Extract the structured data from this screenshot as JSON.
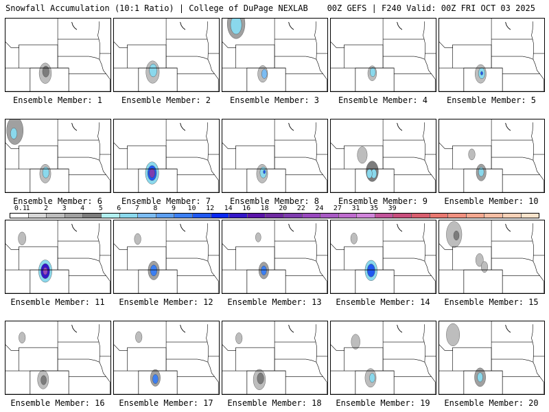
{
  "title_left": "Snowfall Accumulation (10:1 Ratio) | College of DuPage NEXLAB",
  "title_right": "00Z GEFS | F240 Valid: 00Z FRI OCT 03 2025",
  "legend": {
    "labels": [
      "0.1",
      "1",
      "2",
      "3",
      "4",
      "5",
      "6",
      "7",
      "8",
      "9",
      "10",
      "12",
      "14",
      "16",
      "18",
      "20",
      "22",
      "24",
      "27",
      "31",
      "35",
      "39"
    ],
    "colors": [
      "#ffffff",
      "#d8d8d8",
      "#bdbdbd",
      "#a0a0a0",
      "#7c7c7c",
      "#b2f0f0",
      "#8ad8ec",
      "#7cbcf2",
      "#5c9ef0",
      "#3c7ff2",
      "#2058f0",
      "#0a28f0",
      "#3418c8",
      "#5a14a8",
      "#6e2aa0",
      "#7e3cae",
      "#9848be",
      "#a85ac4",
      "#be6cce",
      "#d084da",
      "#c2549a",
      "#c84e7c",
      "#d85e6e",
      "#e87870",
      "#f09080",
      "#f4a890",
      "#f6bea4",
      "#f8d2b8",
      "#fae4cc"
    ]
  },
  "members": [
    {
      "label": "Ensemble Member: 1",
      "blobs": [
        {
          "lon": -106.3,
          "lat": 40.1,
          "r": 1.1,
          "lvl": 2
        },
        {
          "lon": -106.2,
          "lat": 40.4,
          "r": 0.6,
          "lvl": 4
        }
      ]
    },
    {
      "label": "Ensemble Member: 2",
      "blobs": [
        {
          "lon": -106.5,
          "lat": 40.3,
          "r": 1.2,
          "lvl": 2
        },
        {
          "lon": -106.4,
          "lat": 40.6,
          "r": 0.7,
          "lvl": 6
        }
      ]
    },
    {
      "label": "Ensemble Member: 3",
      "blobs": [
        {
          "lon": -111.0,
          "lat": 48.6,
          "r": 1.6,
          "lvl": 3
        },
        {
          "lon": -111.0,
          "lat": 48.4,
          "r": 1.0,
          "lvl": 6
        },
        {
          "lon": -106.2,
          "lat": 40.0,
          "r": 0.9,
          "lvl": 2
        },
        {
          "lon": -105.9,
          "lat": 40.0,
          "r": 0.5,
          "lvl": 7
        }
      ]
    },
    {
      "label": "Ensemble Member: 4",
      "blobs": [
        {
          "lon": -106.0,
          "lat": 40.1,
          "r": 0.8,
          "lvl": 2
        },
        {
          "lon": -105.9,
          "lat": 40.3,
          "r": 0.5,
          "lvl": 6
        }
      ]
    },
    {
      "label": "Ensemble Member: 5",
      "blobs": [
        {
          "lon": -106.0,
          "lat": 40.0,
          "r": 1.0,
          "lvl": 2
        },
        {
          "lon": -105.8,
          "lat": 40.1,
          "r": 0.6,
          "lvl": 6
        },
        {
          "lon": -105.8,
          "lat": 40.1,
          "r": 0.2,
          "lvl": 10
        }
      ]
    },
    {
      "label": "Ensemble Member: 6",
      "blobs": [
        {
          "lon": -111.8,
          "lat": 47.6,
          "r": 1.5,
          "lvl": 3
        },
        {
          "lon": -112.0,
          "lat": 47.1,
          "r": 0.6,
          "lvl": 6
        },
        {
          "lon": -106.3,
          "lat": 40.2,
          "r": 1.0,
          "lvl": 2
        },
        {
          "lon": -106.2,
          "lat": 40.4,
          "r": 0.6,
          "lvl": 6
        }
      ]
    },
    {
      "label": "Ensemble Member: 7",
      "blobs": [
        {
          "lon": -106.6,
          "lat": 40.3,
          "r": 1.2,
          "lvl": 6
        },
        {
          "lon": -106.6,
          "lat": 40.3,
          "r": 0.8,
          "lvl": 10
        },
        {
          "lon": -106.6,
          "lat": 40.3,
          "r": 0.5,
          "lvl": 15
        }
      ]
    },
    {
      "label": "Ensemble Member: 8",
      "blobs": [
        {
          "lon": -106.3,
          "lat": 40.2,
          "r": 1.0,
          "lvl": 2
        },
        {
          "lon": -106.1,
          "lat": 40.4,
          "r": 0.6,
          "lvl": 6
        },
        {
          "lon": -105.9,
          "lat": 40.5,
          "r": 0.2,
          "lvl": 10
        }
      ]
    },
    {
      "label": "Ensemble Member: 9",
      "blobs": [
        {
          "lon": -107.8,
          "lat": 43.4,
          "r": 0.9,
          "lvl": 2
        },
        {
          "lon": -106.0,
          "lat": 40.6,
          "r": 1.1,
          "lvl": 4
        },
        {
          "lon": -105.7,
          "lat": 40.2,
          "r": 0.5,
          "lvl": 6
        },
        {
          "lon": -106.5,
          "lat": 40.2,
          "r": 0.5,
          "lvl": 6
        }
      ]
    },
    {
      "label": "Ensemble Member: 10",
      "blobs": [
        {
          "lon": -107.6,
          "lat": 43.5,
          "r": 0.6,
          "lvl": 2
        },
        {
          "lon": -105.9,
          "lat": 40.4,
          "r": 0.9,
          "lvl": 3
        },
        {
          "lon": -105.9,
          "lat": 40.5,
          "r": 0.5,
          "lvl": 6
        }
      ]
    },
    {
      "label": "Ensemble Member: 11",
      "blobs": [
        {
          "lon": -110.5,
          "lat": 46.4,
          "r": 0.7,
          "lvl": 2
        },
        {
          "lon": -106.3,
          "lat": 40.8,
          "r": 1.2,
          "lvl": 6
        },
        {
          "lon": -106.3,
          "lat": 40.8,
          "r": 0.8,
          "lvl": 12
        },
        {
          "lon": -106.3,
          "lat": 40.8,
          "r": 0.4,
          "lvl": 16
        }
      ]
    },
    {
      "label": "Ensemble Member: 12",
      "blobs": [
        {
          "lon": -109.2,
          "lat": 46.3,
          "r": 0.6,
          "lvl": 2
        },
        {
          "lon": -106.3,
          "lat": 40.9,
          "r": 1.0,
          "lvl": 3
        },
        {
          "lon": -106.3,
          "lat": 40.9,
          "r": 0.6,
          "lvl": 9
        }
      ]
    },
    {
      "label": "Ensemble Member: 13",
      "blobs": [
        {
          "lon": -107.0,
          "lat": 46.6,
          "r": 0.5,
          "lvl": 2
        },
        {
          "lon": -106.0,
          "lat": 40.9,
          "r": 0.9,
          "lvl": 3
        },
        {
          "lon": -106.0,
          "lat": 40.9,
          "r": 0.5,
          "lvl": 9
        }
      ]
    },
    {
      "label": "Ensemble Member: 14",
      "blobs": [
        {
          "lon": -109.3,
          "lat": 46.4,
          "r": 0.6,
          "lvl": 2
        },
        {
          "lon": -106.2,
          "lat": 40.9,
          "r": 1.1,
          "lvl": 6
        },
        {
          "lon": -106.2,
          "lat": 40.9,
          "r": 0.7,
          "lvl": 10
        }
      ]
    },
    {
      "label": "Ensemble Member: 15",
      "blobs": [
        {
          "lon": -110.8,
          "lat": 47.1,
          "r": 1.4,
          "lvl": 2
        },
        {
          "lon": -110.4,
          "lat": 46.9,
          "r": 0.5,
          "lvl": 4
        },
        {
          "lon": -106.2,
          "lat": 42.7,
          "r": 0.7,
          "lvl": 2
        },
        {
          "lon": -105.3,
          "lat": 41.5,
          "r": 0.6,
          "lvl": 2
        }
      ]
    },
    {
      "label": "Ensemble Member: 16",
      "blobs": [
        {
          "lon": -110.5,
          "lat": 46.7,
          "r": 0.6,
          "lvl": 2
        },
        {
          "lon": -106.7,
          "lat": 39.5,
          "r": 1.0,
          "lvl": 2
        },
        {
          "lon": -106.6,
          "lat": 39.4,
          "r": 0.5,
          "lvl": 4
        }
      ]
    },
    {
      "label": "Ensemble Member: 17",
      "blobs": [
        {
          "lon": -109.0,
          "lat": 46.8,
          "r": 0.6,
          "lvl": 2
        },
        {
          "lon": -106.0,
          "lat": 39.8,
          "r": 0.9,
          "lvl": 3
        },
        {
          "lon": -106.0,
          "lat": 39.6,
          "r": 0.5,
          "lvl": 9
        }
      ]
    },
    {
      "label": "Ensemble Member: 18",
      "blobs": [
        {
          "lon": -110.5,
          "lat": 46.6,
          "r": 0.6,
          "lvl": 2
        },
        {
          "lon": -106.8,
          "lat": 39.5,
          "r": 1.1,
          "lvl": 2
        },
        {
          "lon": -106.6,
          "lat": 39.7,
          "r": 0.6,
          "lvl": 4
        }
      ]
    },
    {
      "label": "Ensemble Member: 19",
      "blobs": [
        {
          "lon": -109.0,
          "lat": 46.0,
          "r": 0.8,
          "lvl": 2
        },
        {
          "lon": -106.3,
          "lat": 39.8,
          "r": 1.0,
          "lvl": 2
        },
        {
          "lon": -106.0,
          "lat": 39.8,
          "r": 0.5,
          "lvl": 6
        }
      ]
    },
    {
      "label": "Ensemble Member: 20",
      "blobs": [
        {
          "lon": -111.0,
          "lat": 47.2,
          "r": 1.2,
          "lvl": 2
        },
        {
          "lon": -106.1,
          "lat": 39.9,
          "r": 1.0,
          "lvl": 3
        },
        {
          "lon": -106.1,
          "lat": 39.9,
          "r": 0.5,
          "lvl": 6
        }
      ]
    }
  ]
}
